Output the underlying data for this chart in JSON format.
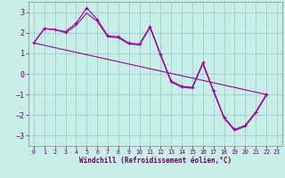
{
  "xlabel": "Windchill (Refroidissement éolien,°C)",
  "bg_color": "#c8eee8",
  "grid_color": "#a0cccc",
  "line_color": "#990099",
  "xlim": [
    -0.5,
    23.5
  ],
  "ylim": [
    -3.5,
    3.5
  ],
  "yticks": [
    -3,
    -2,
    -1,
    0,
    1,
    2,
    3
  ],
  "xticks": [
    0,
    1,
    2,
    3,
    4,
    5,
    6,
    7,
    8,
    9,
    10,
    11,
    12,
    13,
    14,
    15,
    16,
    17,
    18,
    19,
    20,
    21,
    22,
    23
  ],
  "series1_x": [
    0,
    1,
    2,
    3,
    4,
    5,
    6,
    7,
    8,
    9,
    10,
    11,
    12,
    13,
    14,
    15,
    16,
    17,
    18,
    19,
    20,
    21,
    22
  ],
  "series1_y": [
    1.5,
    2.2,
    2.15,
    2.05,
    2.45,
    3.2,
    2.65,
    1.85,
    1.8,
    1.5,
    1.45,
    2.3,
    0.95,
    -0.35,
    -0.6,
    -0.65,
    0.55,
    -0.8,
    -2.1,
    -2.7,
    -2.5,
    -1.85,
    -1.0
  ],
  "series2_x": [
    0,
    1,
    2,
    3,
    4,
    5,
    6,
    7,
    8,
    9,
    10,
    11,
    12,
    13,
    14,
    15,
    16,
    17,
    18,
    19,
    20,
    21,
    22
  ],
  "series2_y": [
    1.5,
    2.2,
    2.15,
    2.0,
    2.35,
    2.95,
    2.55,
    1.8,
    1.75,
    1.45,
    1.4,
    2.25,
    0.9,
    -0.4,
    -0.65,
    -0.7,
    0.5,
    -0.85,
    -2.15,
    -2.75,
    -2.55,
    -1.9,
    -1.05
  ],
  "trend_x": [
    0,
    22
  ],
  "trend_y": [
    1.5,
    -1.0
  ],
  "marker_color": "#990099",
  "tick_color": "#660066"
}
